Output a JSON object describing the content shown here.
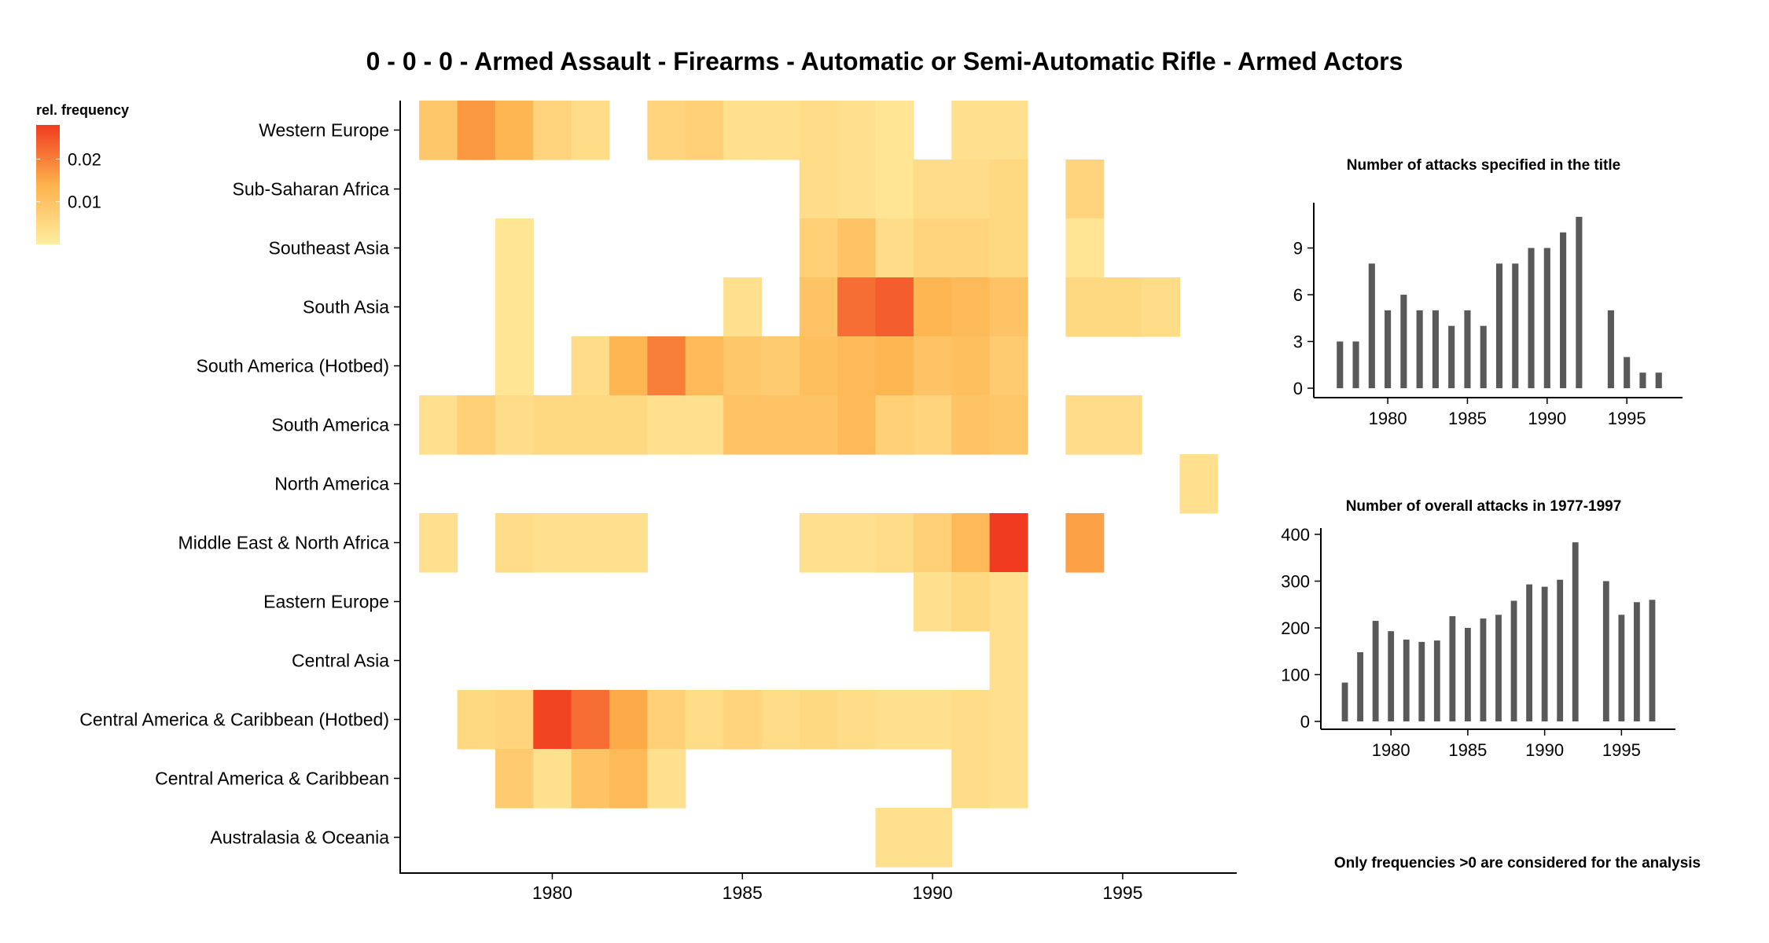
{
  "title": "0 - 0 - 0 - Armed Assault - Firearms - Automatic or Semi-Automatic Rifle - Armed Actors",
  "footnote": "Only frequencies >0 are considered for the analysis",
  "colors": {
    "low": "#FFEDA0",
    "mid": "#FEB24C",
    "high": "#F03B20",
    "bar": "#595959",
    "axis": "#000000"
  },
  "chart_data": [
    {
      "type": "heatmap",
      "title": "0 - 0 - 0 - Armed Assault - Firearms - Automatic or Semi-Automatic Rifle - Armed Actors",
      "legend": {
        "title": "rel. frequency",
        "ticks": [
          0.02,
          0.01
        ],
        "tick_labels": [
          "0.02",
          "0.01"
        ],
        "min": 0.0,
        "max": 0.028,
        "position": "top-left"
      },
      "x_ticks": [
        1980,
        1985,
        1990,
        1995
      ],
      "x_range": [
        1976,
        1998
      ],
      "rows": [
        "Western Europe",
        "Sub-Saharan Africa",
        "Southeast Asia",
        "South Asia",
        "South America (Hotbed)",
        "South America",
        "North America",
        "Middle East & North Africa",
        "Eastern Europe",
        "Central Asia",
        "Central America & Caribbean (Hotbed)",
        "Central America & Caribbean",
        "Australasia & Oceania"
      ],
      "cells": [
        {
          "row": "Western Europe",
          "values": [
            [
              1977,
              0.009
            ],
            [
              1978,
              0.017
            ],
            [
              1979,
              0.013
            ],
            [
              1980,
              0.006
            ],
            [
              1981,
              0.004
            ],
            [
              1983,
              0.006
            ],
            [
              1984,
              0.007
            ],
            [
              1985,
              0.003
            ],
            [
              1986,
              0.003
            ],
            [
              1987,
              0.004
            ],
            [
              1988,
              0.003
            ],
            [
              1989,
              0.002
            ],
            [
              1991,
              0.003
            ],
            [
              1992,
              0.003
            ]
          ]
        },
        {
          "row": "Sub-Saharan Africa",
          "values": [
            [
              1987,
              0.004
            ],
            [
              1988,
              0.003
            ],
            [
              1989,
              0.002
            ],
            [
              1990,
              0.004
            ],
            [
              1991,
              0.004
            ],
            [
              1992,
              0.005
            ],
            [
              1994,
              0.006
            ]
          ]
        },
        {
          "row": "Southeast Asia",
          "values": [
            [
              1979,
              0.002
            ],
            [
              1987,
              0.007
            ],
            [
              1988,
              0.01
            ],
            [
              1989,
              0.004
            ],
            [
              1990,
              0.006
            ],
            [
              1991,
              0.006
            ],
            [
              1992,
              0.005
            ],
            [
              1994,
              0.002
            ]
          ]
        },
        {
          "row": "South Asia",
          "values": [
            [
              1979,
              0.002
            ],
            [
              1985,
              0.003
            ],
            [
              1987,
              0.01
            ],
            [
              1988,
              0.022
            ],
            [
              1989,
              0.024
            ],
            [
              1990,
              0.013
            ],
            [
              1991,
              0.012
            ],
            [
              1992,
              0.01
            ],
            [
              1994,
              0.005
            ],
            [
              1995,
              0.005
            ],
            [
              1996,
              0.004
            ]
          ]
        },
        {
          "row": "South America (Hotbed)",
          "values": [
            [
              1979,
              0.002
            ],
            [
              1981,
              0.004
            ],
            [
              1982,
              0.013
            ],
            [
              1983,
              0.02
            ],
            [
              1984,
              0.012
            ],
            [
              1985,
              0.009
            ],
            [
              1986,
              0.008
            ],
            [
              1987,
              0.011
            ],
            [
              1988,
              0.012
            ],
            [
              1989,
              0.013
            ],
            [
              1990,
              0.01
            ],
            [
              1991,
              0.011
            ],
            [
              1992,
              0.008
            ]
          ]
        },
        {
          "row": "South America",
          "values": [
            [
              1977,
              0.003
            ],
            [
              1978,
              0.007
            ],
            [
              1979,
              0.004
            ],
            [
              1980,
              0.005
            ],
            [
              1981,
              0.005
            ],
            [
              1982,
              0.005
            ],
            [
              1983,
              0.003
            ],
            [
              1984,
              0.003
            ],
            [
              1985,
              0.01
            ],
            [
              1986,
              0.01
            ],
            [
              1987,
              0.01
            ],
            [
              1988,
              0.012
            ],
            [
              1989,
              0.007
            ],
            [
              1990,
              0.006
            ],
            [
              1991,
              0.01
            ],
            [
              1992,
              0.009
            ],
            [
              1994,
              0.004
            ],
            [
              1995,
              0.004
            ]
          ]
        },
        {
          "row": "North America",
          "values": [
            [
              1997,
              0.003
            ]
          ]
        },
        {
          "row": "Middle East & North Africa",
          "values": [
            [
              1977,
              0.003
            ],
            [
              1979,
              0.004
            ],
            [
              1980,
              0.003
            ],
            [
              1981,
              0.003
            ],
            [
              1982,
              0.003
            ],
            [
              1987,
              0.003
            ],
            [
              1988,
              0.003
            ],
            [
              1989,
              0.004
            ],
            [
              1990,
              0.007
            ],
            [
              1991,
              0.012
            ],
            [
              1992,
              0.028
            ],
            [
              1994,
              0.016
            ]
          ]
        },
        {
          "row": "Eastern Europe",
          "values": [
            [
              1990,
              0.003
            ],
            [
              1991,
              0.005
            ],
            [
              1992,
              0.003
            ]
          ]
        },
        {
          "row": "Central Asia",
          "values": [
            [
              1992,
              0.003
            ]
          ]
        },
        {
          "row": "Central America & Caribbean (Hotbed)",
          "values": [
            [
              1978,
              0.005
            ],
            [
              1979,
              0.006
            ],
            [
              1980,
              0.027
            ],
            [
              1981,
              0.022
            ],
            [
              1982,
              0.015
            ],
            [
              1983,
              0.007
            ],
            [
              1984,
              0.004
            ],
            [
              1985,
              0.006
            ],
            [
              1986,
              0.004
            ],
            [
              1987,
              0.005
            ],
            [
              1988,
              0.004
            ],
            [
              1989,
              0.003
            ],
            [
              1990,
              0.003
            ],
            [
              1991,
              0.004
            ],
            [
              1992,
              0.003
            ]
          ]
        },
        {
          "row": "Central America & Caribbean",
          "values": [
            [
              1979,
              0.008
            ],
            [
              1980,
              0.003
            ],
            [
              1981,
              0.01
            ],
            [
              1982,
              0.012
            ],
            [
              1983,
              0.003
            ],
            [
              1991,
              0.004
            ],
            [
              1992,
              0.003
            ]
          ]
        },
        {
          "row": "Australasia & Oceania",
          "values": [
            [
              1989,
              0.003
            ],
            [
              1990,
              0.003
            ]
          ]
        }
      ]
    },
    {
      "type": "bar",
      "title": "Number of attacks specified in the title",
      "x": [
        1977,
        1978,
        1979,
        1980,
        1981,
        1982,
        1983,
        1984,
        1985,
        1986,
        1987,
        1988,
        1989,
        1990,
        1991,
        1992,
        1994,
        1995,
        1996,
        1997
      ],
      "values": [
        3,
        3,
        8,
        5,
        6,
        5,
        5,
        4,
        5,
        4,
        8,
        8,
        9,
        9,
        10,
        11,
        5,
        2,
        1,
        1
      ],
      "x_ticks": [
        1980,
        1985,
        1990,
        1995
      ],
      "y_ticks": [
        0,
        3,
        6,
        9
      ],
      "xlim": [
        1976,
        1998
      ],
      "ylim": [
        0,
        11.5
      ]
    },
    {
      "type": "bar",
      "title": "Number of overall attacks in 1977-1997",
      "x": [
        1977,
        1978,
        1979,
        1980,
        1981,
        1982,
        1983,
        1984,
        1985,
        1986,
        1987,
        1988,
        1989,
        1990,
        1991,
        1992,
        1994,
        1995,
        1996,
        1997
      ],
      "values": [
        83,
        148,
        215,
        193,
        175,
        170,
        173,
        225,
        200,
        220,
        228,
        258,
        293,
        288,
        303,
        383,
        300,
        228,
        255,
        260
      ],
      "x_ticks": [
        1980,
        1985,
        1990,
        1995
      ],
      "y_ticks": [
        0,
        100,
        200,
        300,
        400
      ],
      "xlim": [
        1976,
        1998
      ],
      "ylim": [
        0,
        400
      ]
    }
  ]
}
